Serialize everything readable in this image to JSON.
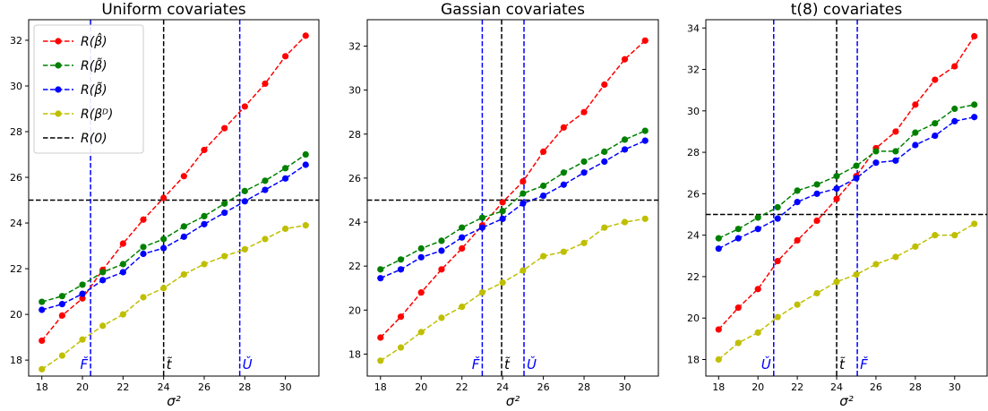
{
  "chart_data": [
    {
      "type": "line",
      "title": "Uniform covariates",
      "xlabel": "σ²",
      "ylabel": "",
      "x": [
        18,
        19,
        20,
        21,
        22,
        23,
        24,
        25,
        26,
        27,
        28,
        29,
        30,
        31
      ],
      "xticks": [
        18,
        20,
        22,
        24,
        26,
        28,
        30
      ],
      "xlim": [
        17.35,
        31.65
      ],
      "yticks": [
        18,
        20,
        22,
        24,
        26,
        28,
        30,
        32
      ],
      "ylim": [
        17.3,
        32.9
      ],
      "series": [
        {
          "name": "R(β̂)",
          "color": "#ff0000",
          "values": [
            18.85,
            19.95,
            20.7,
            21.95,
            23.1,
            24.15,
            25.1,
            26.05,
            27.2,
            28.15,
            29.1,
            30.1,
            31.3,
            32.2
          ]
        },
        {
          "name": "R(β̃)",
          "color": "#008000",
          "values": [
            20.55,
            20.8,
            21.3,
            21.85,
            22.2,
            22.95,
            23.3,
            23.85,
            24.3,
            24.85,
            25.4,
            25.85,
            26.4,
            27.0
          ]
        },
        {
          "name": "R(β̃)",
          "color": "#0000ff",
          "values": [
            20.2,
            20.45,
            20.9,
            21.5,
            21.85,
            22.65,
            22.9,
            23.4,
            23.95,
            24.45,
            24.95,
            25.45,
            25.95,
            26.55
          ]
        },
        {
          "name": "R(βᴰ)",
          "color": "#bfbf00",
          "values": [
            17.6,
            18.2,
            18.9,
            19.5,
            20.0,
            20.75,
            21.15,
            21.75,
            22.2,
            22.55,
            22.85,
            23.3,
            23.75,
            23.9
          ]
        }
      ],
      "hlines": [
        {
          "name": "R(0)",
          "y": 25.0,
          "color": "#000000"
        }
      ],
      "vlines": [
        {
          "x": 20.4,
          "label": "F̌",
          "color": "#0000ff",
          "label_side": "left"
        },
        {
          "x": 24.0,
          "label": "t̃",
          "color": "#000000",
          "label_side": "right"
        },
        {
          "x": 27.75,
          "label": "Ǔ",
          "color": "#0000ff",
          "label_side": "right"
        }
      ],
      "legend": "upper-left",
      "grid": false
    },
    {
      "type": "line",
      "title": "Gassian covariates",
      "xlabel": "σ²",
      "ylabel": "",
      "x": [
        18,
        19,
        20,
        21,
        22,
        23,
        24,
        25,
        26,
        27,
        28,
        29,
        30,
        31
      ],
      "xticks": [
        18,
        20,
        22,
        24,
        26,
        28,
        30
      ],
      "xlim": [
        17.35,
        31.65
      ],
      "yticks": [
        18,
        20,
        22,
        24,
        26,
        28,
        30,
        32
      ],
      "ylim": [
        17.0,
        33.2
      ],
      "series": [
        {
          "name": "R(β̂)",
          "color": "#ff0000",
          "values": [
            18.75,
            19.7,
            20.8,
            21.85,
            22.8,
            23.85,
            24.9,
            25.85,
            27.2,
            28.3,
            29.0,
            30.25,
            31.4,
            32.25
          ]
        },
        {
          "name": "R(β̃)",
          "color": "#008000",
          "values": [
            21.85,
            22.3,
            22.8,
            23.15,
            23.75,
            24.2,
            24.5,
            25.3,
            25.65,
            26.25,
            26.75,
            27.2,
            27.75,
            28.15
          ]
        },
        {
          "name": "R(β̃)",
          "color": "#0000ff",
          "values": [
            21.45,
            21.85,
            22.4,
            22.7,
            23.3,
            23.75,
            24.15,
            24.85,
            25.2,
            25.7,
            26.25,
            26.75,
            27.3,
            27.7
          ]
        },
        {
          "name": "R(βᴰ)",
          "color": "#bfbf00",
          "values": [
            17.7,
            18.3,
            19.0,
            19.65,
            20.15,
            20.8,
            21.25,
            21.8,
            22.45,
            22.65,
            23.05,
            23.75,
            24.0,
            24.15
          ]
        }
      ],
      "hlines": [
        {
          "name": "R(0)",
          "y": 25.0,
          "color": "#000000"
        }
      ],
      "vlines": [
        {
          "x": 23.0,
          "label": "F̌",
          "color": "#0000ff",
          "label_side": "left"
        },
        {
          "x": 23.95,
          "label": "t̃",
          "color": "#000000",
          "label_side": "right"
        },
        {
          "x": 25.05,
          "label": "Ǔ",
          "color": "#0000ff",
          "label_side": "right"
        }
      ],
      "legend": "",
      "grid": false
    },
    {
      "type": "line",
      "title": "t(8) covariates",
      "xlabel": "σ²",
      "ylabel": "",
      "x": [
        18,
        19,
        20,
        21,
        22,
        23,
        24,
        25,
        26,
        27,
        28,
        29,
        30,
        31
      ],
      "xticks": [
        18,
        20,
        22,
        24,
        26,
        28,
        30
      ],
      "xlim": [
        17.35,
        31.65
      ],
      "yticks": [
        18,
        20,
        22,
        24,
        26,
        28,
        30,
        32,
        34
      ],
      "ylim": [
        17.2,
        34.4
      ],
      "series": [
        {
          "name": "R(β̂)",
          "color": "#ff0000",
          "values": [
            19.45,
            20.5,
            21.4,
            22.75,
            23.75,
            24.7,
            25.75,
            26.85,
            28.2,
            29.0,
            30.3,
            31.5,
            32.15,
            33.6
          ]
        },
        {
          "name": "R(β̃)",
          "color": "#008000",
          "values": [
            23.85,
            24.3,
            24.85,
            25.35,
            26.15,
            26.45,
            26.85,
            27.35,
            28.05,
            28.05,
            28.95,
            29.4,
            30.1,
            30.3
          ]
        },
        {
          "name": "R(β̃)",
          "color": "#0000ff",
          "values": [
            23.35,
            23.85,
            24.3,
            24.8,
            25.6,
            26.0,
            26.25,
            26.75,
            27.5,
            27.6,
            28.35,
            28.8,
            29.5,
            29.7
          ]
        },
        {
          "name": "R(βᴰ)",
          "color": "#bfbf00",
          "values": [
            18.0,
            18.8,
            19.3,
            20.05,
            20.65,
            21.2,
            21.75,
            22.1,
            22.6,
            22.95,
            23.45,
            24.0,
            24.0,
            24.55
          ]
        }
      ],
      "hlines": [
        {
          "name": "R(0)",
          "y": 25.0,
          "color": "#000000"
        }
      ],
      "vlines": [
        {
          "x": 20.8,
          "label": "Ǔ",
          "color": "#0000ff",
          "label_side": "left"
        },
        {
          "x": 24.0,
          "label": "t̃",
          "color": "#000000",
          "label_side": "right"
        },
        {
          "x": 25.05,
          "label": "F̌",
          "color": "#0000ff",
          "label_side": "right"
        }
      ],
      "legend": "",
      "grid": false
    }
  ]
}
